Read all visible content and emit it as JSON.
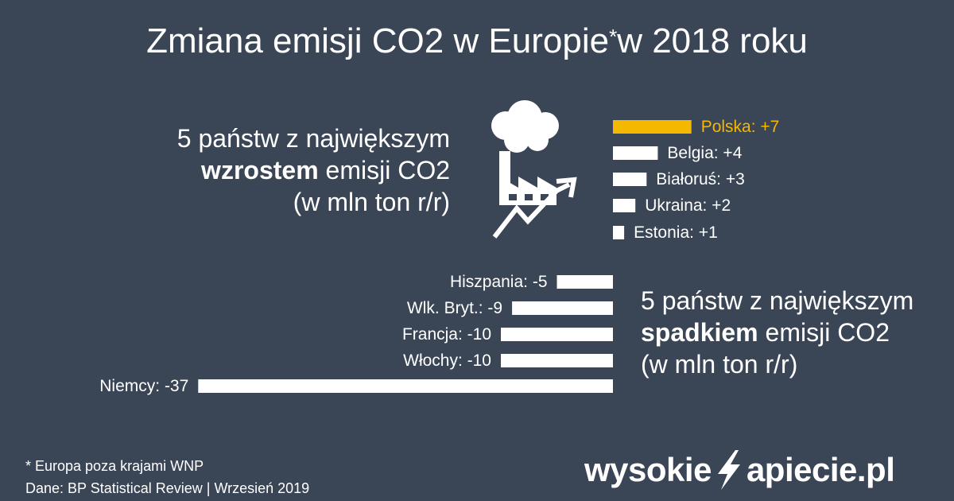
{
  "title": {
    "main": "Zmiana emisji CO2 w Europie",
    "asterisk": "*",
    "suffix": "w 2018 roku"
  },
  "increase_block": {
    "line1": "5 państw z największym",
    "line2_bold": "wzrostem",
    "line2_rest": " emisji CO2",
    "line3": "(w mln ton r/r)"
  },
  "decrease_block": {
    "line1": "5 państw z największym",
    "line2_bold": "spadkiem",
    "line2_rest": " emisji CO2",
    "line3": "(w mln ton r/r)"
  },
  "icons": {
    "factory": "factory-with-cloud-and-rising-arrow-icon",
    "brand": "lightning-bolt-icon"
  },
  "colors": {
    "background": "#3a4556",
    "bar": "#ffffff",
    "highlight": "#f5b800"
  },
  "chart_data": [
    {
      "type": "bar",
      "orientation": "horizontal",
      "categories": [
        "Polska",
        "Belgia",
        "Białoruś",
        "Ukraina",
        "Estonia"
      ],
      "labels": [
        "Polska:  +7",
        "Belgia:  +4",
        "Białoruś:  +3",
        "Ukraina:  +2",
        "Estonia:  +1"
      ],
      "values": [
        7,
        4,
        3,
        2,
        1
      ],
      "highlight": "Polska"
    },
    {
      "type": "bar",
      "orientation": "horizontal",
      "categories": [
        "Hiszpania",
        "Wlk. Bryt.",
        "Francja",
        "Włochy",
        "Niemcy"
      ],
      "labels": [
        "Hiszpania:  -5",
        "Wlk. Bryt.:  -9",
        "Francja:  -10",
        "Włochy:  -10",
        "Niemcy:  -37"
      ],
      "values": [
        -5,
        -9,
        -10,
        -10,
        -37
      ]
    }
  ],
  "footer": {
    "note": "* Europa poza krajami WNP",
    "source": "Dane: BP Statistical Review  |  Wrzesień 2019",
    "brand_left": "wysokie",
    "brand_right": "apiecie.pl"
  }
}
